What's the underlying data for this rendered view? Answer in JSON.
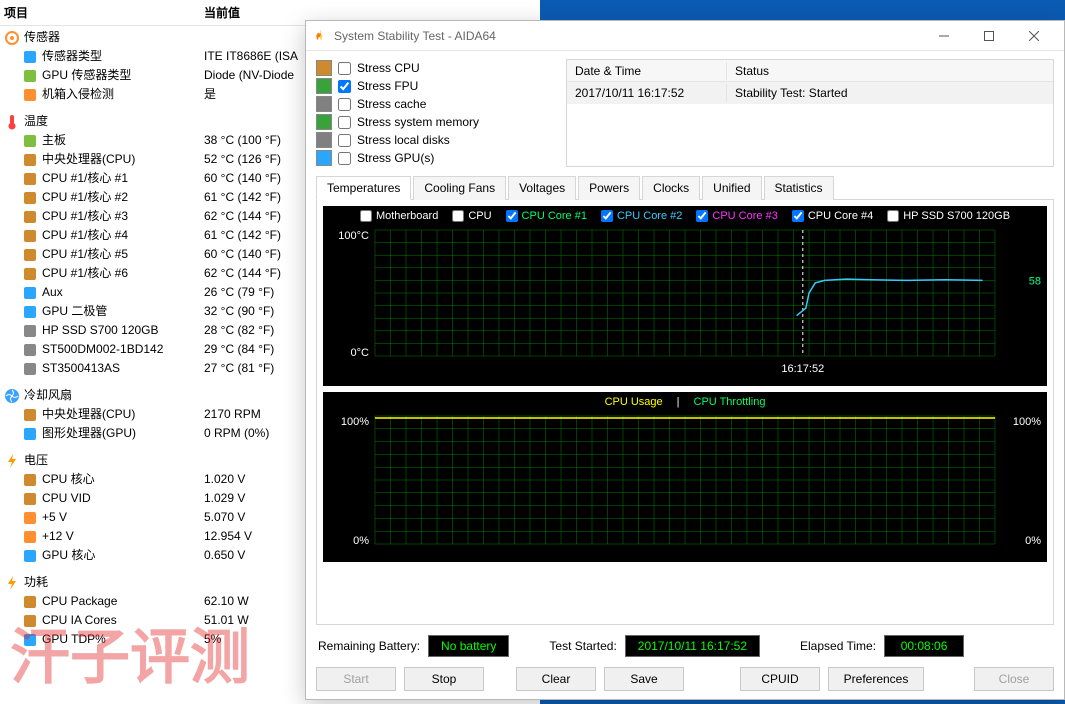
{
  "back": {
    "col_item": "项目",
    "col_value": "当前值",
    "cat_sensor": "传感器",
    "sensor_rows": [
      {
        "label": "传感器类型",
        "value": "ITE IT8686E  (ISA",
        "icon": "#2aa6ff"
      },
      {
        "label": "GPU 传感器类型",
        "value": "Diode  (NV-Diode",
        "icon": "#7fbf3f"
      },
      {
        "label": "机箱入侵检测",
        "value": "是",
        "icon": "#ff9030"
      }
    ],
    "cat_temp": "温度",
    "temp_rows": [
      {
        "label": "主板",
        "value": "38 °C  (100 °F)",
        "icon": "#7fbf3f"
      },
      {
        "label": "中央处理器(CPU)",
        "value": "52 °C  (126 °F)",
        "icon": "#d08a2e"
      },
      {
        "label": "CPU #1/核心 #1",
        "value": "60 °C  (140 °F)",
        "icon": "#d08a2e"
      },
      {
        "label": "CPU #1/核心 #2",
        "value": "61 °C  (142 °F)",
        "icon": "#d08a2e"
      },
      {
        "label": "CPU #1/核心 #3",
        "value": "62 °C  (144 °F)",
        "icon": "#d08a2e"
      },
      {
        "label": "CPU #1/核心 #4",
        "value": "61 °C  (142 °F)",
        "icon": "#d08a2e"
      },
      {
        "label": "CPU #1/核心 #5",
        "value": "60 °C  (140 °F)",
        "icon": "#d08a2e"
      },
      {
        "label": "CPU #1/核心 #6",
        "value": "62 °C  (144 °F)",
        "icon": "#d08a2e"
      },
      {
        "label": "Aux",
        "value": "26 °C  (79 °F)",
        "icon": "#2aa6ff"
      },
      {
        "label": "GPU 二极管",
        "value": "32 °C  (90 °F)",
        "icon": "#2aa6ff"
      },
      {
        "label": "HP SSD S700 120GB",
        "value": "28 °C  (82 °F)",
        "icon": "#888888"
      },
      {
        "label": "ST500DM002-1BD142",
        "value": "29 °C  (84 °F)",
        "icon": "#888888"
      },
      {
        "label": "ST3500413AS",
        "value": "27 °C  (81 °F)",
        "icon": "#888888"
      }
    ],
    "cat_fan": "冷却风扇",
    "fan_rows": [
      {
        "label": "中央处理器(CPU)",
        "value": "2170 RPM",
        "icon": "#d08a2e"
      },
      {
        "label": "图形处理器(GPU)",
        "value": "0 RPM  (0%)",
        "icon": "#2aa6ff"
      }
    ],
    "cat_volt": "电压",
    "volt_rows": [
      {
        "label": "CPU 核心",
        "value": "1.020 V",
        "icon": "#d08a2e"
      },
      {
        "label": "CPU VID",
        "value": "1.029 V",
        "icon": "#d08a2e"
      },
      {
        "label": "+5 V",
        "value": "5.070 V",
        "icon": "#ff9030"
      },
      {
        "label": "+12 V",
        "value": "12.954 V",
        "icon": "#ff9030"
      },
      {
        "label": "GPU 核心",
        "value": "0.650 V",
        "icon": "#2aa6ff"
      }
    ],
    "cat_power": "功耗",
    "power_rows": [
      {
        "label": "CPU Package",
        "value": "62.10 W",
        "icon": "#d08a2e"
      },
      {
        "label": "CPU IA Cores",
        "value": "51.01 W",
        "icon": "#d08a2e"
      },
      {
        "label": "GPU TDP%",
        "value": "5%",
        "icon": "#2aa6ff"
      }
    ]
  },
  "front": {
    "title": "System Stability Test - AIDA64",
    "stress": [
      {
        "label": "Stress CPU",
        "checked": false,
        "color": "#d08a2e"
      },
      {
        "label": "Stress FPU",
        "checked": true,
        "color": "#3aa23a"
      },
      {
        "label": "Stress cache",
        "checked": false,
        "color": "#808080"
      },
      {
        "label": "Stress system memory",
        "checked": false,
        "color": "#3aa23a"
      },
      {
        "label": "Stress local disks",
        "checked": false,
        "color": "#808080"
      },
      {
        "label": "Stress GPU(s)",
        "checked": false,
        "color": "#2aa6ff"
      }
    ],
    "status_table": {
      "h1": "Date & Time",
      "h2": "Status",
      "r1": "2017/10/11 16:17:52",
      "r2": "Stability Test: Started"
    },
    "tabs": [
      "Temperatures",
      "Cooling Fans",
      "Voltages",
      "Powers",
      "Clocks",
      "Unified",
      "Statistics"
    ],
    "active_tab": 0,
    "temp_chart": {
      "legend": [
        {
          "label": "Motherboard",
          "checked": false,
          "color": "#ffffff"
        },
        {
          "label": "CPU",
          "checked": false,
          "color": "#ffffff"
        },
        {
          "label": "CPU Core #1",
          "checked": true,
          "color": "#00ff66"
        },
        {
          "label": "CPU Core #2",
          "checked": true,
          "color": "#33ccff"
        },
        {
          "label": "CPU Core #3",
          "checked": true,
          "color": "#ff33ff"
        },
        {
          "label": "CPU Core #4",
          "checked": true,
          "color": "#ffffff"
        },
        {
          "label": "HP SSD S700 120GB",
          "checked": false,
          "color": "#ffffff"
        }
      ],
      "y_max": "100°C",
      "y_min": "0°C",
      "marker_time": "16:17:52",
      "readout": "58",
      "background": "#000000",
      "grid": "#008000",
      "curve_color": "#33ccff",
      "curve": [
        [
          0.68,
          0.68
        ],
        [
          0.695,
          0.62
        ],
        [
          0.7,
          0.5
        ],
        [
          0.71,
          0.42
        ],
        [
          0.725,
          0.4
        ],
        [
          0.76,
          0.39
        ],
        [
          0.8,
          0.395
        ],
        [
          0.86,
          0.4
        ],
        [
          0.92,
          0.395
        ],
        [
          0.98,
          0.4
        ]
      ]
    },
    "usage_chart": {
      "title_l": "CPU Usage",
      "title_r": "CPU Throttling",
      "y_max": "100%",
      "y_min": "0%",
      "y_right_max": "100%",
      "y_right_min": "0%",
      "background": "#000000",
      "grid": "#008000",
      "line": "#ffff00"
    },
    "footer": {
      "batt_l": "Remaining Battery:",
      "batt_v": "No battery",
      "start_l": "Test Started:",
      "start_v": "2017/10/11 16:17:52",
      "elapsed_l": "Elapsed Time:",
      "elapsed_v": "00:08:06"
    },
    "buttons": {
      "start": "Start",
      "stop": "Stop",
      "clear": "Clear",
      "save": "Save",
      "cpuid": "CPUID",
      "prefs": "Preferences",
      "close": "Close"
    }
  },
  "watermark": "汗子评测"
}
